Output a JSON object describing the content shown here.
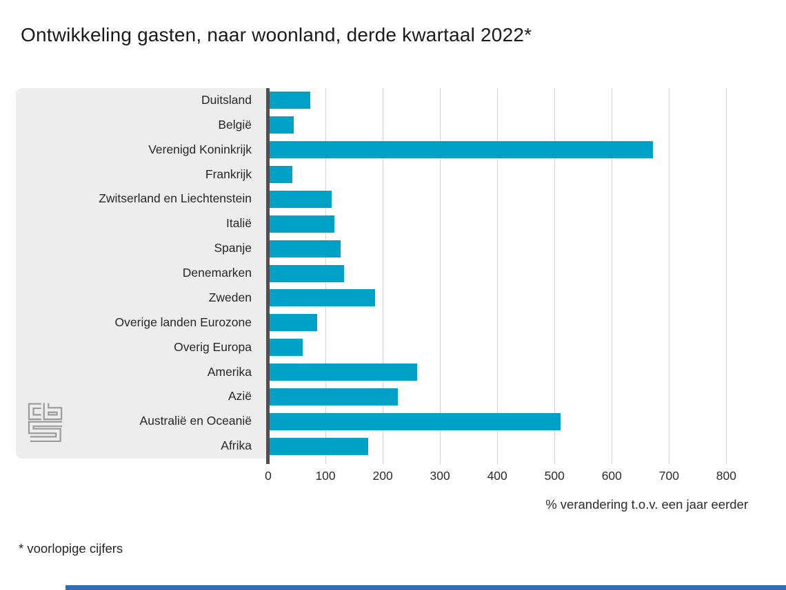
{
  "title": "Ontwikkeling gasten, naar woonland, derde kwartaal 2022*",
  "footnote": "* voorlopige cijfers",
  "logo": "cbs-logo",
  "colors": {
    "bar": "#00a1c6",
    "panel": "#ededed",
    "gridline": "#d2d2d2",
    "axis_line": "#4f4f51",
    "bottom_accent": "#2e6db8",
    "text": "#262626"
  },
  "chart_data": {
    "type": "bar",
    "orientation": "horizontal",
    "title": "Ontwikkeling gasten, naar woonland, derde kwartaal 2022*",
    "categories": [
      "Duitsland",
      "België",
      "Verenigd Koninkrijk",
      "Frankrijk",
      "Zwitserland en Liechtenstein",
      "Italië",
      "Spanje",
      "Denemarken",
      "Zweden",
      "Overige landen Eurozone",
      "Overig Europa",
      "Amerika",
      "Azië",
      "Australië en Oceanië",
      "Afrika"
    ],
    "values": [
      73,
      45,
      672,
      42,
      111,
      116,
      127,
      132,
      187,
      85,
      60,
      260,
      226,
      510,
      174
    ],
    "xlabel": "% verandering t.o.v. een jaar eerder",
    "xticks": [
      0,
      100,
      200,
      300,
      400,
      500,
      600,
      700,
      800
    ],
    "xlim": [
      0,
      838
    ],
    "unit": "%",
    "grid": "vertical",
    "legend": "none",
    "footnote": "* voorlopige cijfers"
  }
}
